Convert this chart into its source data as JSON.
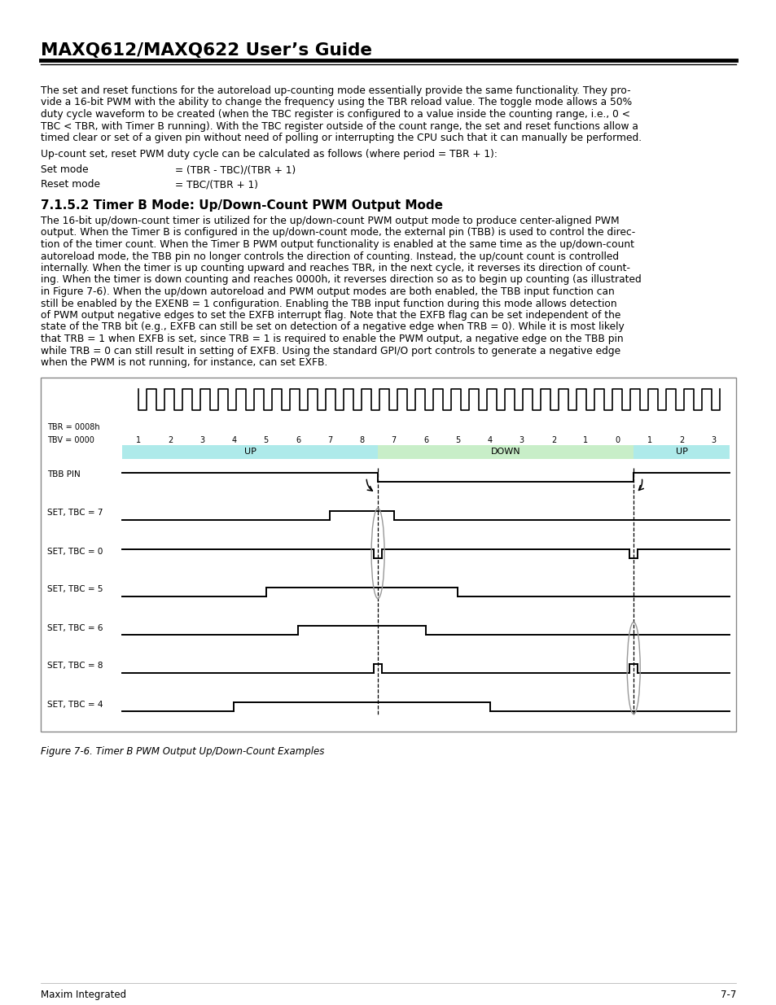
{
  "title": "MAXQ612/MAXQ622 User’s Guide",
  "section_title": "7.1.5.2 Timer B Mode: Up/Down-Count PWM Output Mode",
  "figure_caption": "Figure 7-6. Timer B PWM Output Up/Down-Count Examples",
  "footer_left": "Maxim Integrated",
  "footer_right": "7-7",
  "up_color": "#aeeaea",
  "down_color": "#c8eec8",
  "bg_color": "#ffffff"
}
